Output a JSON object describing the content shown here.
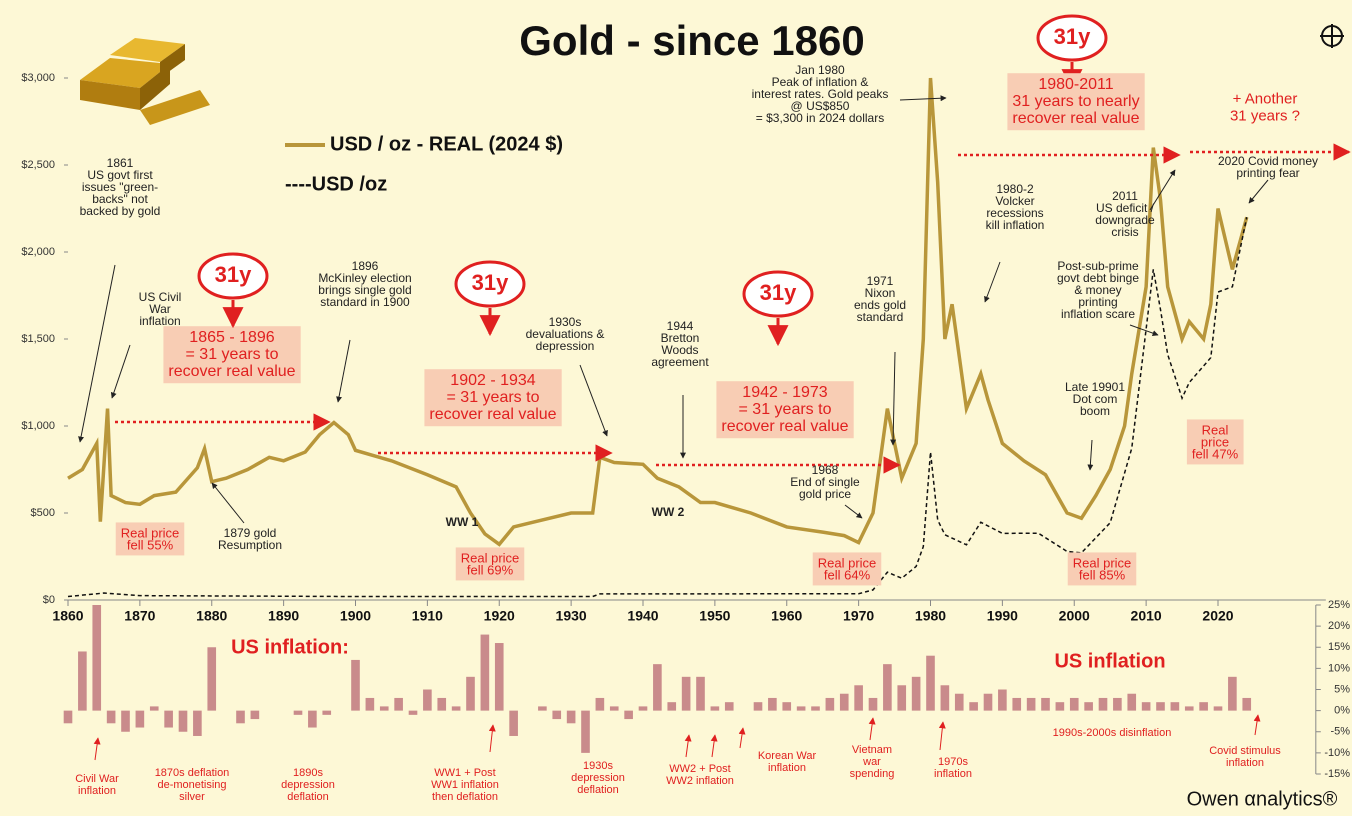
{
  "chart_data": [
    {
      "type": "line",
      "title": "Gold - since 1860",
      "xlim": [
        1860,
        2035
      ],
      "xticks": [
        1860,
        1870,
        1880,
        1890,
        1900,
        1910,
        1920,
        1930,
        1940,
        1950,
        1960,
        1970,
        1980,
        1990,
        2000,
        2010,
        2020
      ],
      "ylim": [
        0,
        3000
      ],
      "yticks": [
        {
          "value": 0,
          "label": "$0"
        },
        {
          "value": 500,
          "label": "$500"
        },
        {
          "value": 1000,
          "label": "$1,000"
        },
        {
          "value": 1500,
          "label": "$1,500"
        },
        {
          "value": 2000,
          "label": "$2,000"
        },
        {
          "value": 2500,
          "label": "$2,500"
        },
        {
          "value": 3000,
          "label": "$3,000"
        }
      ],
      "series": [
        {
          "name": "USD / oz - REAL (2024 $)",
          "color": "#b8963a",
          "x": [
            1860,
            1862,
            1864,
            1864.5,
            1865.5,
            1866,
            1868,
            1870,
            1872,
            1875,
            1878,
            1879,
            1880,
            1882,
            1885,
            1888,
            1890,
            1893,
            1895,
            1897,
            1899,
            1900,
            1905,
            1910,
            1914,
            1916,
            1918,
            1920,
            1922,
            1925,
            1930,
            1933,
            1934,
            1936,
            1940,
            1942,
            1945,
            1948,
            1950,
            1955,
            1960,
            1965,
            1968,
            1970,
            1972,
            1974,
            1976,
            1978,
            1979,
            1980,
            1981,
            1982,
            1983,
            1985,
            1987,
            1988,
            1990,
            1993,
            1996,
            1999,
            2001,
            2003,
            2005,
            2007,
            2008,
            2010,
            2011,
            2012,
            2013,
            2015,
            2016,
            2018,
            2019,
            2020,
            2022,
            2024
          ],
          "values": [
            700,
            750,
            900,
            450,
            1100,
            600,
            560,
            550,
            600,
            620,
            760,
            870,
            680,
            700,
            750,
            820,
            800,
            850,
            950,
            1020,
            950,
            860,
            800,
            720,
            650,
            500,
            380,
            320,
            420,
            450,
            500,
            500,
            820,
            790,
            780,
            700,
            650,
            560,
            560,
            500,
            420,
            390,
            370,
            330,
            500,
            1100,
            700,
            900,
            1500,
            3000,
            2400,
            1500,
            1700,
            1100,
            1300,
            1150,
            900,
            800,
            720,
            500,
            470,
            600,
            750,
            1000,
            1300,
            1800,
            2600,
            2300,
            1800,
            1500,
            1600,
            1500,
            1700,
            2250,
            1900,
            2200
          ]
        },
        {
          "name": "----USD /oz",
          "color": "#111111",
          "x": [
            1860,
            1865,
            1870,
            1900,
            1933,
            1934,
            1970,
            1972,
            1974,
            1976,
            1978,
            1979,
            1980,
            1981,
            1982,
            1985,
            1987,
            1990,
            1995,
            1999,
            2001,
            2005,
            2008,
            2011,
            2012,
            2013,
            2015,
            2016,
            2019,
            2020,
            2022,
            2024
          ],
          "values": [
            20,
            40,
            25,
            20,
            20,
            35,
            36,
            58,
            160,
            125,
            193,
            307,
            850,
            460,
            375,
            317,
            447,
            383,
            384,
            279,
            271,
            444,
            872,
            1900,
            1669,
            1411,
            1160,
            1250,
            1393,
            1770,
            1800,
            2200
          ]
        }
      ],
      "annotations": [
        [
          "1861",
          "US govt first",
          "issues \"green-",
          "backs\" not",
          "backed by gold"
        ],
        [
          "US Civil",
          "War",
          "inflation"
        ],
        [
          "1865 - 1896",
          "= 31 years to",
          "recover real value"
        ],
        [
          "31y"
        ],
        [
          "1896",
          "McKinley election",
          "brings single gold",
          "standard in 1900"
        ],
        [
          "31y"
        ],
        [
          "1930s",
          "devaluations &",
          "depression"
        ],
        [
          "1902 - 1934",
          "= 31 years to",
          "recover real value"
        ],
        [
          "1944",
          "Bretton",
          "Woods",
          "agreement"
        ],
        [
          "31y"
        ],
        [
          "1942 - 1973",
          "= 31 years to",
          "recover real value"
        ],
        [
          "1971",
          "Nixon",
          "ends gold",
          "standard"
        ],
        [
          "1968",
          "End of single",
          "gold price"
        ],
        [
          "Jan 1980",
          "Peak of inflation &",
          "interest rates. Gold peaks",
          "@ US$850",
          "= $3,300 in 2024 dollars"
        ],
        [
          "31y"
        ],
        [
          "1980-2011",
          "31 years to nearly",
          "recover real value"
        ],
        [
          "+ Another",
          "31 years ?"
        ],
        [
          "2020 Covid money",
          "printing fear"
        ],
        [
          "1980-2",
          "Volcker",
          "recessions",
          "kill inflation"
        ],
        [
          "2011",
          "US deficit /",
          "downgrade",
          "crisis"
        ],
        [
          "Post-sub-prime",
          "govt debt binge",
          "& money",
          "printing",
          "inflation scare"
        ],
        [
          "Late 19901",
          "Dot com",
          "boom"
        ],
        [
          "Real price",
          "fell 55%"
        ],
        [
          "1879 gold",
          "Resumption"
        ],
        [
          "Real price",
          "fell 69%"
        ],
        [
          "WW 1"
        ],
        [
          "WW 2"
        ],
        [
          "Real price",
          "fell 64%"
        ],
        [
          "Real price",
          "fell 85%"
        ],
        [
          "Real",
          "price",
          "fell 47%"
        ]
      ],
      "logo": "Owen αnalytics®"
    },
    {
      "type": "bar",
      "color": "#c98b8b",
      "x": [
        1860,
        1862,
        1864,
        1866,
        1868,
        1870,
        1872,
        1874,
        1876,
        1878,
        1880,
        1882,
        1884,
        1886,
        1888,
        1890,
        1892,
        1894,
        1896,
        1898,
        1900,
        1902,
        1904,
        1906,
        1908,
        1910,
        1912,
        1914,
        1916,
        1918,
        1920,
        1922,
        1924,
        1926,
        1928,
        1930,
        1932,
        1934,
        1936,
        1938,
        1940,
        1942,
        1944,
        1946,
        1948,
        1950,
        1952,
        1954,
        1956,
        1958,
        1960,
        1962,
        1964,
        1966,
        1968,
        1970,
        1972,
        1974,
        1976,
        1978,
        1980,
        1982,
        1984,
        1986,
        1988,
        1990,
        1992,
        1994,
        1996,
        1998,
        2000,
        2002,
        2004,
        2006,
        2008,
        2010,
        2012,
        2014,
        2016,
        2018,
        2020,
        2022,
        2024
      ],
      "values": [
        -3,
        14,
        25,
        -3,
        -5,
        -4,
        1,
        -4,
        -5,
        -6,
        15,
        0,
        -3,
        -2,
        0,
        0,
        -1,
        -4,
        -1,
        0,
        12,
        3,
        1,
        3,
        -1,
        5,
        3,
        1,
        8,
        18,
        16,
        -6,
        0,
        1,
        -2,
        -3,
        -10,
        3,
        1,
        -2,
        1,
        11,
        2,
        8,
        8,
        1,
        2,
        0,
        2,
        3,
        2,
        1,
        1,
        3,
        4,
        6,
        3,
        11,
        6,
        8,
        13,
        6,
        4,
        2,
        4,
        5,
        3,
        3,
        3,
        2,
        3,
        2,
        3,
        3,
        4,
        2,
        2,
        2,
        1,
        2,
        1,
        8,
        3
      ],
      "ylim": [
        -15,
        25
      ],
      "yticks": [
        {
          "value": -15,
          "label": "-15%"
        },
        {
          "value": -10,
          "label": "-10%"
        },
        {
          "value": -5,
          "label": "-5%"
        },
        {
          "value": 0,
          "label": "0%"
        },
        {
          "value": 5,
          "label": "5%"
        },
        {
          "value": 10,
          "label": "10%"
        },
        {
          "value": 15,
          "label": "15%"
        },
        {
          "value": 20,
          "label": "20%"
        },
        {
          "value": 25,
          "label": "25%"
        }
      ],
      "annotations": [
        [
          "US inflation:"
        ],
        [
          "US inflation"
        ],
        [
          "Civil War",
          "inflation"
        ],
        [
          "1870s deflation",
          "de-monetising",
          "silver"
        ],
        [
          "1890s",
          "depression",
          "deflation"
        ],
        [
          "WW1 + Post",
          "WW1 inflation",
          "then deflation"
        ],
        [
          "1930s",
          "depression",
          "deflation"
        ],
        [
          "WW2 + Post",
          "WW2 inflation"
        ],
        [
          "Korean War",
          "inflation"
        ],
        [
          "Vietnam",
          "war",
          "spending"
        ],
        [
          "1970s",
          "inflation"
        ],
        [
          "1990s-2000s disinflation"
        ],
        [
          "Covid stimulus",
          "inflation"
        ]
      ]
    }
  ]
}
